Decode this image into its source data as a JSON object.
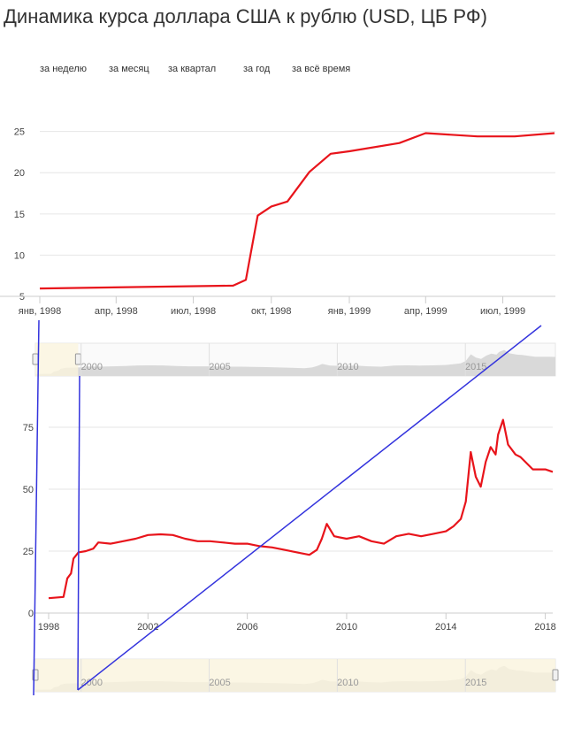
{
  "header": {
    "title": "Динамика курса доллара США к рублю (USD, ЦБ РФ)"
  },
  "periods": [
    {
      "label": "за неделю"
    },
    {
      "label": "за месяц"
    },
    {
      "label": "за квартал"
    },
    {
      "label": "за год"
    },
    {
      "label": "за всё время"
    }
  ],
  "colors": {
    "series": "#e8141b",
    "overlay": "#3333dd",
    "navigator_fill": "#d9d9d9",
    "navigator_selection": "#fbf4dc"
  },
  "chart_data": [
    {
      "type": "line",
      "x_ticks": [
        "янв, 1998",
        "апр, 1998",
        "июл, 1998",
        "окт, 1998",
        "янв, 1999",
        "апр, 1999",
        "июл, 1999"
      ],
      "y_ticks": [
        "5",
        "10",
        "15",
        "20",
        "25"
      ],
      "ylim": [
        5,
        27
      ],
      "series": [
        {
          "x": [
            "1998-01-01",
            "1998-08-17",
            "1998-09-01",
            "1998-09-15",
            "1998-10-01",
            "1998-10-20",
            "1998-11-15",
            "1998-12-10",
            "1999-01-01",
            "1999-03-01",
            "1999-04-01",
            "1999-06-01",
            "1999-07-15",
            "1999-08-31"
          ],
          "values": [
            5.96,
            6.3,
            7.0,
            14.8,
            15.9,
            16.5,
            20.1,
            22.3,
            22.6,
            23.6,
            24.8,
            24.4,
            24.4,
            24.8
          ]
        }
      ]
    },
    {
      "type": "line",
      "x_ticks": [
        "1998",
        "2002",
        "2006",
        "2010",
        "2014",
        "2018"
      ],
      "y_ticks": [
        "0",
        "25",
        "50",
        "75"
      ],
      "ylim": [
        0,
        85
      ],
      "series": [
        {
          "x": [
            1998.0,
            1998.6,
            1998.75,
            1998.9,
            1999.0,
            1999.2,
            1999.5,
            1999.8,
            2000.0,
            2000.5,
            2001.0,
            2001.5,
            2002.0,
            2002.5,
            2003.0,
            2003.5,
            2004.0,
            2004.5,
            2005.0,
            2005.5,
            2006.0,
            2006.5,
            2007.0,
            2007.5,
            2008.0,
            2008.5,
            2008.8,
            2009.0,
            2009.2,
            2009.5,
            2010.0,
            2010.5,
            2011.0,
            2011.5,
            2012.0,
            2012.5,
            2013.0,
            2013.5,
            2014.0,
            2014.3,
            2014.6,
            2014.8,
            2015.0,
            2015.2,
            2015.4,
            2015.6,
            2015.8,
            2016.0,
            2016.1,
            2016.3,
            2016.5,
            2016.8,
            2017.0,
            2017.5,
            2018.0,
            2018.3
          ],
          "values": [
            6.0,
            6.5,
            14,
            16,
            22,
            24.5,
            25,
            26,
            28.5,
            28,
            29,
            30,
            31.5,
            31.8,
            31.5,
            30,
            29,
            29,
            28.5,
            28,
            28,
            27,
            26.5,
            25.5,
            24.5,
            23.5,
            25.5,
            30,
            36,
            31,
            30,
            31,
            29,
            28,
            31,
            32,
            31,
            32,
            33,
            35,
            38,
            45,
            65,
            55,
            51,
            61,
            67,
            64,
            72,
            78,
            68,
            64,
            63,
            58,
            58,
            57
          ]
        }
      ]
    }
  ]
}
